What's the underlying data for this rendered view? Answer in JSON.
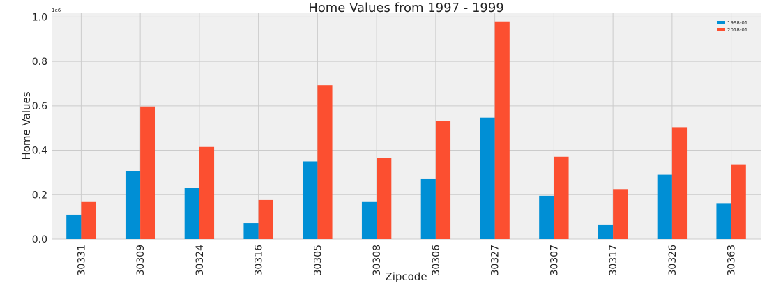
{
  "chart_data": {
    "type": "bar",
    "title": "Home Values from 1997 - 1999",
    "xlabel": "Zipcode",
    "ylabel": "Home Values",
    "y_offset_label": "1e6",
    "categories": [
      "30331",
      "30309",
      "30324",
      "30316",
      "30305",
      "30308",
      "30306",
      "30327",
      "30307",
      "30317",
      "30326",
      "30363"
    ],
    "series": [
      {
        "name": "1998-01",
        "color": "#008fd5",
        "values": [
          110000,
          305000,
          230000,
          72000,
          350000,
          167000,
          270000,
          547000,
          195000,
          63000,
          290000,
          162000
        ]
      },
      {
        "name": "2018-01",
        "color": "#fc4f30",
        "values": [
          167000,
          597000,
          415000,
          176000,
          693000,
          366000,
          531000,
          980000,
          371000,
          225000,
          504000,
          337000
        ]
      }
    ],
    "ylim": [
      0,
      1020000
    ],
    "yticks": [
      0,
      200000,
      400000,
      600000,
      800000,
      1000000
    ],
    "ytick_labels": [
      "0.0",
      "0.2",
      "0.4",
      "0.6",
      "0.8",
      "1.0"
    ],
    "grid": true,
    "legend_position": "top-right",
    "background_color": "#f0f0f0"
  }
}
